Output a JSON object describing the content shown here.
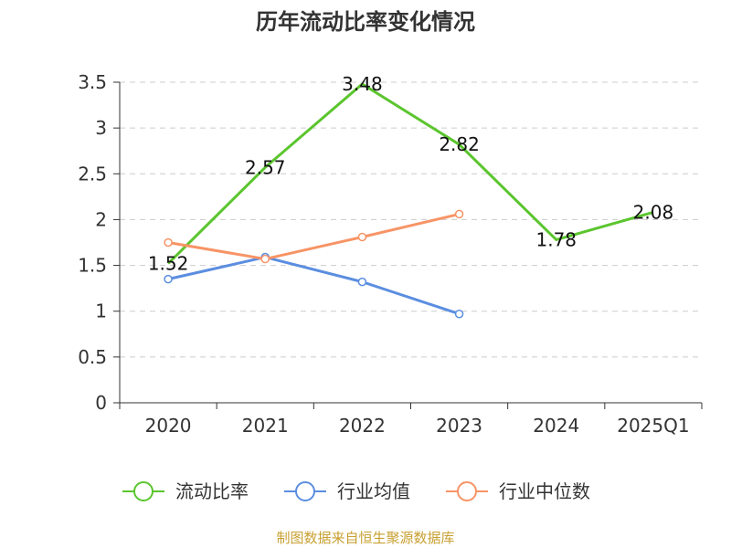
{
  "chart_data": {
    "type": "line",
    "title": "历年流动比率变化情况",
    "categories": [
      "2020",
      "2021",
      "2022",
      "2023",
      "2024",
      "2025Q1"
    ],
    "ylim": [
      0,
      3.5
    ],
    "yticks": [
      "0",
      "0.5",
      "1",
      "1.5",
      "2",
      "2.5",
      "3",
      "3.5"
    ],
    "grid": true,
    "legend_position": "bottom",
    "series": [
      {
        "name": "流动比率",
        "color": "#5bc52e",
        "values": [
          1.52,
          2.57,
          3.48,
          2.82,
          1.78,
          2.08
        ],
        "show_labels": true,
        "labels": [
          "1.52",
          "2.57",
          "3.48",
          "2.82",
          "1.78",
          "2.08"
        ]
      },
      {
        "name": "行业均值",
        "color": "#5b8ee0",
        "values": [
          1.35,
          1.59,
          1.32,
          0.97,
          null,
          null
        ],
        "show_labels": false
      },
      {
        "name": "行业中位数",
        "color": "#f79466",
        "values": [
          1.75,
          1.57,
          1.81,
          2.06,
          null,
          null
        ],
        "show_labels": false
      }
    ]
  },
  "source": "制图数据来自恒生聚源数据库"
}
